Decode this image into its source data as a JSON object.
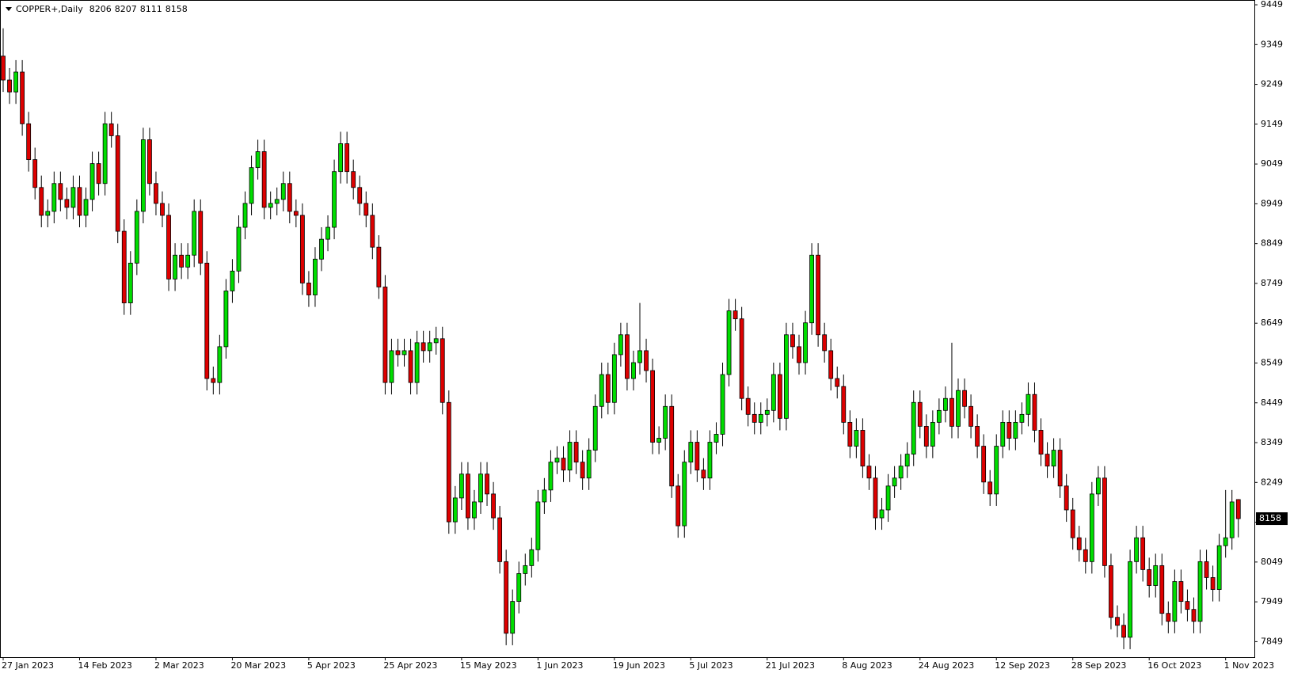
{
  "chart_data": {
    "type": "candlestick",
    "title": "COPPER+,Daily",
    "up_color": "#00dd00",
    "down_color": "#dd0000",
    "ylim": [
      7810,
      9461
    ],
    "yticks": [
      9449,
      9349,
      9249,
      9149,
      9049,
      8949,
      8849,
      8749,
      8649,
      8549,
      8449,
      8349,
      8249,
      8149,
      8049,
      7949,
      7849
    ],
    "categories": [
      "27 Jan 2023",
      null,
      null,
      null,
      null,
      null,
      null,
      null,
      null,
      null,
      null,
      null,
      "14 Feb 2023",
      null,
      null,
      null,
      null,
      null,
      null,
      null,
      null,
      null,
      null,
      null,
      "2 Mar 2023",
      null,
      null,
      null,
      null,
      null,
      null,
      null,
      null,
      null,
      null,
      null,
      "20 Mar 2023",
      null,
      null,
      null,
      null,
      null,
      null,
      null,
      null,
      null,
      null,
      null,
      "5 Apr 2023",
      null,
      null,
      null,
      null,
      null,
      null,
      null,
      null,
      null,
      null,
      null,
      "25 Apr 2023",
      null,
      null,
      null,
      null,
      null,
      null,
      null,
      null,
      null,
      null,
      null,
      "15 May 2023",
      null,
      null,
      null,
      null,
      null,
      null,
      null,
      null,
      null,
      null,
      null,
      "1 Jun 2023",
      null,
      null,
      null,
      null,
      null,
      null,
      null,
      null,
      null,
      null,
      null,
      "19 Jun 2023",
      null,
      null,
      null,
      null,
      null,
      null,
      null,
      null,
      null,
      null,
      null,
      "5 Jul 2023",
      null,
      null,
      null,
      null,
      null,
      null,
      null,
      null,
      null,
      null,
      null,
      "21 Jul 2023",
      null,
      null,
      null,
      null,
      null,
      null,
      null,
      null,
      null,
      null,
      null,
      "8 Aug 2023",
      null,
      null,
      null,
      null,
      null,
      null,
      null,
      null,
      null,
      null,
      null,
      "24 Aug 2023",
      null,
      null,
      null,
      null,
      null,
      null,
      null,
      null,
      null,
      null,
      null,
      "12 Sep 2023",
      null,
      null,
      null,
      null,
      null,
      null,
      null,
      null,
      null,
      null,
      null,
      "28 Sep 2023",
      null,
      null,
      null,
      null,
      null,
      null,
      null,
      null,
      null,
      null,
      null,
      "16 Oct 2023",
      null,
      null,
      null,
      null,
      null,
      null,
      null,
      null,
      null,
      null,
      null,
      "1 Nov 2023",
      null,
      null
    ],
    "open": [
      9320,
      9260,
      9230,
      9280,
      9150,
      9060,
      8990,
      8920,
      8930,
      9000,
      8960,
      8940,
      8990,
      8920,
      8960,
      9050,
      9000,
      9150,
      9120,
      8880,
      8700,
      8800,
      8930,
      9110,
      9000,
      8950,
      8920,
      8760,
      8820,
      8790,
      8820,
      8930,
      8800,
      8510,
      8500,
      8590,
      8730,
      8780,
      8890,
      8950,
      9040,
      9080,
      8940,
      8950,
      8960,
      9000,
      8930,
      8920,
      8750,
      8720,
      8810,
      8860,
      8890,
      9030,
      9100,
      9030,
      8990,
      8950,
      8920,
      8840,
      8740,
      8500,
      8580,
      8570,
      8580,
      8500,
      8600,
      8580,
      8600,
      8610,
      8450,
      8150,
      8210,
      8270,
      8160,
      8200,
      8270,
      8220,
      8160,
      8050,
      7870,
      7950,
      8020,
      8040,
      8080,
      8200,
      8230,
      8300,
      8310,
      8280,
      8350,
      8300,
      8260,
      8330,
      8440,
      8520,
      8450,
      8570,
      8620,
      8510,
      8550,
      8580,
      8530,
      8350,
      8360,
      8440,
      8240,
      8140,
      8300,
      8350,
      8280,
      8260,
      8350,
      8370,
      8520,
      8680,
      8660,
      8460,
      8420,
      8400,
      8420,
      8430,
      8520,
      8410,
      8620,
      8590,
      8550,
      8650,
      8820,
      8620,
      8580,
      8510,
      8490,
      8400,
      8340,
      8380,
      8290,
      8260,
      8160,
      8180,
      8240,
      8260,
      8290,
      8320,
      8450,
      8390,
      8340,
      8400,
      8430,
      8460,
      8390,
      8480,
      8440,
      8390,
      8340,
      8250,
      8220,
      8340,
      8400,
      8360,
      8400,
      8420,
      8470,
      8380,
      8320,
      8290,
      8330,
      8240,
      8180,
      8110,
      8080,
      8050,
      8220,
      8260,
      8040,
      7910,
      7890,
      7860,
      8050,
      8110,
      8030,
      7990,
      8040,
      7920,
      7900,
      8000,
      7950,
      7930,
      7900,
      8050,
      8010,
      7980,
      8090,
      8110,
      8206
    ],
    "high": [
      9390,
      9290,
      9310,
      9310,
      9180,
      9090,
      9020,
      8960,
      9030,
      9030,
      8990,
      9020,
      9020,
      8990,
      9080,
      9080,
      9180,
      9180,
      9150,
      8910,
      8830,
      8960,
      9140,
      9140,
      9030,
      8980,
      8950,
      8850,
      8850,
      8850,
      8960,
      8960,
      8830,
      8540,
      8620,
      8760,
      8810,
      8920,
      8980,
      9070,
      9110,
      9110,
      8980,
      8990,
      9030,
      9030,
      8960,
      8950,
      8780,
      8840,
      8890,
      8920,
      9060,
      9130,
      9130,
      9060,
      9020,
      8980,
      8950,
      8870,
      8770,
      8610,
      8610,
      8610,
      8610,
      8630,
      8630,
      8630,
      8640,
      8640,
      8480,
      8240,
      8300,
      8300,
      8230,
      8300,
      8300,
      8250,
      8190,
      8080,
      7980,
      8050,
      8070,
      8110,
      8230,
      8260,
      8330,
      8340,
      8340,
      8380,
      8380,
      8330,
      8360,
      8470,
      8550,
      8550,
      8600,
      8650,
      8650,
      8580,
      8700,
      8610,
      8560,
      8390,
      8470,
      8470,
      8270,
      8330,
      8380,
      8380,
      8310,
      8380,
      8400,
      8550,
      8710,
      8710,
      8690,
      8490,
      8450,
      8450,
      8460,
      8550,
      8550,
      8650,
      8650,
      8620,
      8680,
      8850,
      8850,
      8650,
      8610,
      8540,
      8520,
      8430,
      8410,
      8410,
      8320,
      8290,
      8210,
      8270,
      8290,
      8320,
      8350,
      8480,
      8480,
      8420,
      8430,
      8460,
      8490,
      8600,
      8510,
      8510,
      8470,
      8420,
      8370,
      8280,
      8370,
      8430,
      8430,
      8430,
      8450,
      8500,
      8500,
      8410,
      8350,
      8360,
      8360,
      8270,
      8210,
      8140,
      8110,
      8250,
      8290,
      8290,
      8070,
      7940,
      7920,
      8080,
      8140,
      8140,
      8060,
      8070,
      8070,
      7950,
      8030,
      8030,
      7980,
      7960,
      8080,
      8080,
      8040,
      8120,
      8230,
      8230,
      8207
    ],
    "low": [
      9230,
      9200,
      9200,
      9120,
      9030,
      8960,
      8890,
      8890,
      8900,
      8930,
      8910,
      8910,
      8890,
      8890,
      8930,
      8970,
      8970,
      9090,
      8850,
      8670,
      8670,
      8770,
      8900,
      8970,
      8920,
      8890,
      8730,
      8730,
      8760,
      8760,
      8790,
      8770,
      8480,
      8470,
      8470,
      8560,
      8700,
      8750,
      8860,
      8920,
      9010,
      8910,
      8910,
      8920,
      8930,
      8900,
      8890,
      8720,
      8690,
      8690,
      8780,
      8830,
      8860,
      9000,
      9000,
      8960,
      8920,
      8890,
      8810,
      8710,
      8470,
      8470,
      8540,
      8540,
      8470,
      8470,
      8550,
      8550,
      8570,
      8420,
      8120,
      8120,
      8180,
      8130,
      8130,
      8170,
      8190,
      8130,
      8020,
      7840,
      7840,
      7920,
      7990,
      8010,
      8050,
      8170,
      8200,
      8270,
      8250,
      8250,
      8270,
      8230,
      8230,
      8300,
      8410,
      8420,
      8420,
      8540,
      8480,
      8480,
      8520,
      8500,
      8320,
      8320,
      8330,
      8210,
      8110,
      8110,
      8270,
      8250,
      8230,
      8230,
      8320,
      8340,
      8490,
      8630,
      8430,
      8390,
      8370,
      8370,
      8390,
      8400,
      8380,
      8380,
      8560,
      8520,
      8520,
      8620,
      8590,
      8550,
      8480,
      8460,
      8370,
      8310,
      8310,
      8260,
      8230,
      8130,
      8130,
      8150,
      8210,
      8230,
      8260,
      8290,
      8360,
      8310,
      8310,
      8370,
      8400,
      8360,
      8360,
      8410,
      8360,
      8310,
      8220,
      8190,
      8190,
      8310,
      8330,
      8330,
      8370,
      8390,
      8350,
      8290,
      8260,
      8260,
      8210,
      8150,
      8080,
      8050,
      8020,
      8020,
      8190,
      8010,
      7880,
      7860,
      7830,
      7830,
      8020,
      8000,
      7960,
      7960,
      7890,
      7870,
      7870,
      7920,
      7900,
      7870,
      7870,
      7980,
      7950,
      7950,
      8060,
      8080,
      8111
    ],
    "close": [
      9260,
      9230,
      9280,
      9150,
      9060,
      8990,
      8920,
      8930,
      9000,
      8960,
      8940,
      8990,
      8920,
      8960,
      9050,
      9000,
      9150,
      9120,
      8880,
      8700,
      8800,
      8930,
      9110,
      9000,
      8950,
      8920,
      8760,
      8820,
      8790,
      8820,
      8930,
      8800,
      8510,
      8500,
      8590,
      8730,
      8780,
      8890,
      8950,
      9040,
      9080,
      8940,
      8950,
      8960,
      9000,
      8930,
      8920,
      8750,
      8720,
      8810,
      8860,
      8890,
      9030,
      9100,
      9030,
      8990,
      8950,
      8920,
      8840,
      8740,
      8500,
      8580,
      8570,
      8580,
      8500,
      8600,
      8580,
      8600,
      8610,
      8450,
      8150,
      8210,
      8270,
      8160,
      8200,
      8270,
      8220,
      8160,
      8050,
      7870,
      7950,
      8020,
      8040,
      8080,
      8200,
      8230,
      8300,
      8310,
      8280,
      8350,
      8300,
      8260,
      8330,
      8440,
      8520,
      8450,
      8570,
      8620,
      8510,
      8550,
      8580,
      8530,
      8350,
      8360,
      8440,
      8240,
      8140,
      8300,
      8350,
      8280,
      8260,
      8350,
      8370,
      8520,
      8680,
      8660,
      8460,
      8420,
      8400,
      8420,
      8430,
      8520,
      8410,
      8620,
      8590,
      8550,
      8650,
      8820,
      8620,
      8580,
      8510,
      8490,
      8400,
      8340,
      8380,
      8290,
      8260,
      8160,
      8180,
      8240,
      8260,
      8290,
      8320,
      8450,
      8390,
      8340,
      8400,
      8430,
      8460,
      8390,
      8480,
      8440,
      8390,
      8340,
      8250,
      8220,
      8340,
      8400,
      8360,
      8400,
      8420,
      8470,
      8380,
      8320,
      8290,
      8330,
      8240,
      8180,
      8110,
      8080,
      8050,
      8220,
      8260,
      8040,
      7910,
      7890,
      7860,
      8050,
      8110,
      8030,
      7990,
      8040,
      7920,
      7900,
      8000,
      7950,
      7930,
      7900,
      8050,
      8010,
      7980,
      8090,
      8110,
      8200,
      8158
    ]
  }
}
